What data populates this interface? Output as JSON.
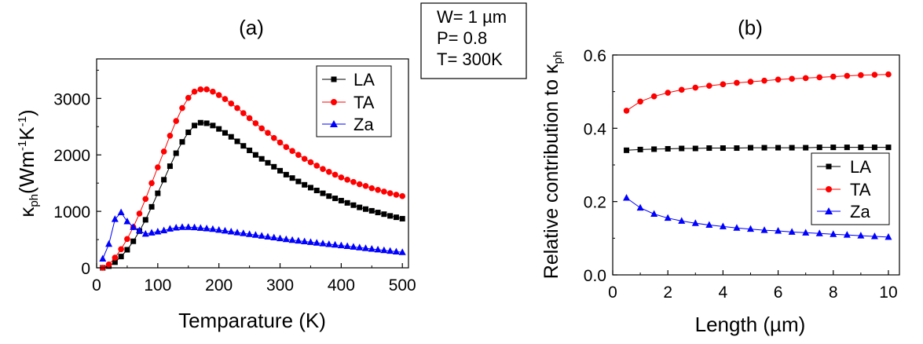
{
  "params_box": {
    "lines": [
      "W= 1 µm",
      "P= 0.8",
      "T= 300K"
    ]
  },
  "chart_data": [
    {
      "type": "line",
      "panel_label": "(a)",
      "xlabel": "Temparature (K)",
      "ylabel_main": "κ",
      "ylabel_sub": "ph",
      "ylabel_unit_open": "(Wm",
      "ylabel_unit_exp1": "-1",
      "ylabel_unit_mid": "K",
      "ylabel_unit_exp2": "-1",
      "ylabel_unit_close": ")",
      "xlim": [
        0,
        510
      ],
      "ylim": [
        0,
        3700
      ],
      "xticks": [
        0,
        100,
        200,
        300,
        400,
        500
      ],
      "yticks": [
        0,
        1000,
        2000,
        3000
      ],
      "legend_position": "top-right",
      "series": [
        {
          "name": "LA",
          "color": "#000000",
          "marker": "square",
          "x": [
            10,
            20,
            30,
            40,
            50,
            60,
            70,
            80,
            90,
            100,
            110,
            120,
            130,
            140,
            150,
            160,
            170,
            180,
            190,
            200,
            210,
            220,
            230,
            240,
            250,
            260,
            270,
            280,
            290,
            300,
            310,
            320,
            330,
            340,
            350,
            360,
            370,
            380,
            390,
            400,
            410,
            420,
            430,
            440,
            450,
            460,
            470,
            480,
            490,
            500
          ],
          "y": [
            0,
            30,
            100,
            200,
            320,
            470,
            650,
            850,
            1080,
            1320,
            1560,
            1800,
            2030,
            2230,
            2400,
            2520,
            2570,
            2560,
            2520,
            2460,
            2390,
            2320,
            2240,
            2160,
            2080,
            2000,
            1930,
            1860,
            1790,
            1720,
            1650,
            1590,
            1530,
            1470,
            1420,
            1370,
            1320,
            1270,
            1230,
            1190,
            1150,
            1110,
            1070,
            1040,
            1010,
            980,
            950,
            920,
            895,
            870
          ]
        },
        {
          "name": "TA",
          "color": "#ff0000",
          "marker": "circle",
          "x": [
            10,
            20,
            30,
            40,
            50,
            60,
            70,
            80,
            90,
            100,
            110,
            120,
            130,
            140,
            150,
            160,
            170,
            180,
            190,
            200,
            210,
            220,
            230,
            240,
            250,
            260,
            270,
            280,
            290,
            300,
            310,
            320,
            330,
            340,
            350,
            360,
            370,
            380,
            390,
            400,
            410,
            420,
            430,
            440,
            450,
            460,
            470,
            480,
            490,
            500
          ],
          "y": [
            0,
            60,
            180,
            330,
            510,
            720,
            960,
            1220,
            1500,
            1780,
            2060,
            2340,
            2600,
            2830,
            3010,
            3120,
            3160,
            3160,
            3120,
            3060,
            2990,
            2910,
            2830,
            2740,
            2650,
            2560,
            2470,
            2390,
            2300,
            2220,
            2140,
            2070,
            2000,
            1930,
            1870,
            1810,
            1750,
            1700,
            1650,
            1600,
            1560,
            1520,
            1480,
            1450,
            1410,
            1380,
            1350,
            1320,
            1295,
            1270
          ]
        },
        {
          "name": "Za",
          "color": "#0000ff",
          "marker": "triangle",
          "x": [
            10,
            20,
            30,
            40,
            50,
            60,
            70,
            80,
            90,
            100,
            110,
            120,
            130,
            140,
            150,
            160,
            170,
            180,
            190,
            200,
            210,
            220,
            230,
            240,
            250,
            260,
            270,
            280,
            290,
            300,
            310,
            320,
            330,
            340,
            350,
            360,
            370,
            380,
            390,
            400,
            410,
            420,
            430,
            440,
            450,
            460,
            470,
            480,
            490,
            500
          ],
          "y": [
            160,
            420,
            860,
            980,
            820,
            720,
            660,
            600,
            620,
            640,
            660,
            690,
            710,
            720,
            720,
            715,
            705,
            695,
            685,
            670,
            655,
            640,
            625,
            610,
            595,
            580,
            565,
            550,
            535,
            520,
            505,
            490,
            478,
            466,
            454,
            442,
            430,
            418,
            406,
            394,
            382,
            370,
            358,
            346,
            334,
            322,
            310,
            298,
            286,
            275
          ]
        }
      ]
    },
    {
      "type": "line",
      "panel_label": "(b)",
      "xlabel": "Length (µm)",
      "ylabel_main": "Relative contribution to κ",
      "ylabel_sub": "ph",
      "xlim": [
        0,
        10.4
      ],
      "ylim": [
        0,
        0.6
      ],
      "xticks": [
        0,
        2,
        4,
        6,
        8,
        10
      ],
      "yticks": [
        0.0,
        0.2,
        0.4,
        0.6
      ],
      "ytick_labels": [
        "0.0",
        "0.2",
        "0.4",
        "0.6"
      ],
      "legend_position": "bottom-right",
      "series": [
        {
          "name": "LA",
          "color": "#000000",
          "marker": "square",
          "x": [
            0.5,
            1,
            1.5,
            2,
            2.5,
            3,
            3.5,
            4,
            4.5,
            5,
            5.5,
            6,
            6.5,
            7,
            7.5,
            8,
            8.5,
            9,
            9.5,
            10
          ],
          "y": [
            0.34,
            0.342,
            0.343,
            0.344,
            0.345,
            0.345,
            0.346,
            0.346,
            0.346,
            0.347,
            0.347,
            0.347,
            0.347,
            0.347,
            0.348,
            0.348,
            0.348,
            0.348,
            0.348,
            0.348
          ]
        },
        {
          "name": "TA",
          "color": "#ff0000",
          "marker": "circle",
          "x": [
            0.5,
            1,
            1.5,
            2,
            2.5,
            3,
            3.5,
            4,
            4.5,
            5,
            5.5,
            6,
            6.5,
            7,
            7.5,
            8,
            8.5,
            9,
            9.5,
            10
          ],
          "y": [
            0.448,
            0.473,
            0.487,
            0.497,
            0.505,
            0.511,
            0.516,
            0.52,
            0.524,
            0.527,
            0.53,
            0.533,
            0.535,
            0.537,
            0.539,
            0.541,
            0.543,
            0.545,
            0.546,
            0.547
          ]
        },
        {
          "name": "Za",
          "color": "#0000ff",
          "marker": "triangle",
          "x": [
            0.5,
            1,
            1.5,
            2,
            2.5,
            3,
            3.5,
            4,
            4.5,
            5,
            5.5,
            6,
            6.5,
            7,
            7.5,
            8,
            8.5,
            9,
            9.5,
            10
          ],
          "y": [
            0.21,
            0.183,
            0.166,
            0.155,
            0.147,
            0.141,
            0.136,
            0.132,
            0.128,
            0.125,
            0.122,
            0.12,
            0.117,
            0.115,
            0.113,
            0.111,
            0.109,
            0.107,
            0.105,
            0.103
          ]
        }
      ]
    }
  ]
}
